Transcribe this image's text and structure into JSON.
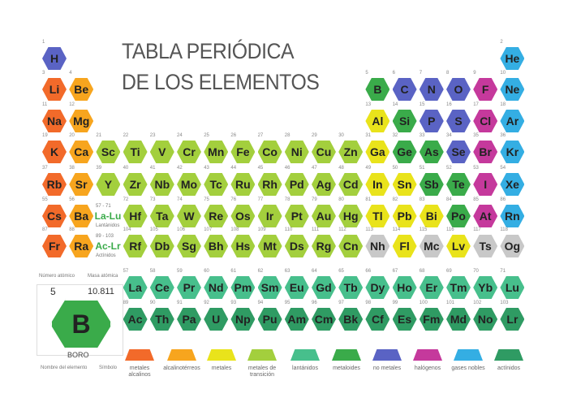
{
  "title": [
    "TABLA PERIÓDICA",
    "DE LOS ELEMENTOS"
  ],
  "legend": [
    {
      "label": "metales alcalinos",
      "color": "#f26a2a"
    },
    {
      "label": "alcalinotérreos",
      "color": "#f7a51e"
    },
    {
      "label": "metales",
      "color": "#e9e31b"
    },
    {
      "label": "metales de transición",
      "color": "#a3cf3d"
    },
    {
      "label": "lantánidos",
      "color": "#47bf8c"
    },
    {
      "label": "metaloides",
      "color": "#3aab4a"
    },
    {
      "label": "no metales",
      "color": "#5a63c4"
    },
    {
      "label": "halógenos",
      "color": "#c5399c"
    },
    {
      "label": "gases nobles",
      "color": "#34aee3"
    },
    {
      "label": "actínidos",
      "color": "#2f9b63"
    }
  ],
  "groups": {
    "lanthanides": {
      "symbol": "La-Lu",
      "range": "57 - 71",
      "name": "Lantánidos"
    },
    "actinides": {
      "symbol": "Ac-Lr",
      "range": "89 - 103",
      "name": "Actínidos"
    }
  },
  "key": {
    "number_label": "Número atómico",
    "mass_label": "Masa atómica",
    "number": 5,
    "mass": "10.811",
    "symbol": "B",
    "name": "BORO",
    "name_label": "Nombre del elemento",
    "symbol_label": "Símbolo",
    "category": 5
  },
  "unknown_color": "#c8c8c8",
  "elements": [
    {
      "n": 1,
      "s": "H",
      "c": 6
    },
    {
      "n": 2,
      "s": "He",
      "c": 8
    },
    {
      "n": 3,
      "s": "Li",
      "c": 0
    },
    {
      "n": 4,
      "s": "Be",
      "c": 1
    },
    {
      "n": 5,
      "s": "B",
      "c": 5
    },
    {
      "n": 6,
      "s": "C",
      "c": 6
    },
    {
      "n": 7,
      "s": "N",
      "c": 6
    },
    {
      "n": 8,
      "s": "O",
      "c": 6
    },
    {
      "n": 9,
      "s": "F",
      "c": 7
    },
    {
      "n": 10,
      "s": "Ne",
      "c": 8
    },
    {
      "n": 11,
      "s": "Na",
      "c": 0
    },
    {
      "n": 12,
      "s": "Mg",
      "c": 1
    },
    {
      "n": 13,
      "s": "Al",
      "c": 2
    },
    {
      "n": 14,
      "s": "Si",
      "c": 5
    },
    {
      "n": 15,
      "s": "P",
      "c": 6
    },
    {
      "n": 16,
      "s": "S",
      "c": 6
    },
    {
      "n": 17,
      "s": "Cl",
      "c": 7
    },
    {
      "n": 18,
      "s": "Ar",
      "c": 8
    },
    {
      "n": 19,
      "s": "K",
      "c": 0
    },
    {
      "n": 20,
      "s": "Ca",
      "c": 1
    },
    {
      "n": 21,
      "s": "Sc",
      "c": 3
    },
    {
      "n": 22,
      "s": "Ti",
      "c": 3
    },
    {
      "n": 23,
      "s": "V",
      "c": 3
    },
    {
      "n": 24,
      "s": "Cr",
      "c": 3
    },
    {
      "n": 25,
      "s": "Mn",
      "c": 3
    },
    {
      "n": 26,
      "s": "Fe",
      "c": 3
    },
    {
      "n": 27,
      "s": "Co",
      "c": 3
    },
    {
      "n": 28,
      "s": "Ni",
      "c": 3
    },
    {
      "n": 29,
      "s": "Cu",
      "c": 3
    },
    {
      "n": 30,
      "s": "Zn",
      "c": 3
    },
    {
      "n": 31,
      "s": "Ga",
      "c": 2
    },
    {
      "n": 32,
      "s": "Ge",
      "c": 5
    },
    {
      "n": 33,
      "s": "As",
      "c": 5
    },
    {
      "n": 34,
      "s": "Se",
      "c": 6
    },
    {
      "n": 35,
      "s": "Br",
      "c": 7
    },
    {
      "n": 36,
      "s": "Kr",
      "c": 8
    },
    {
      "n": 37,
      "s": "Rb",
      "c": 0
    },
    {
      "n": 38,
      "s": "Sr",
      "c": 1
    },
    {
      "n": 39,
      "s": "Y",
      "c": 3
    },
    {
      "n": 40,
      "s": "Zr",
      "c": 3
    },
    {
      "n": 41,
      "s": "Nb",
      "c": 3
    },
    {
      "n": 42,
      "s": "Mo",
      "c": 3
    },
    {
      "n": 43,
      "s": "Tc",
      "c": 3
    },
    {
      "n": 44,
      "s": "Ru",
      "c": 3
    },
    {
      "n": 45,
      "s": "Rh",
      "c": 3
    },
    {
      "n": 46,
      "s": "Pd",
      "c": 3
    },
    {
      "n": 47,
      "s": "Ag",
      "c": 3
    },
    {
      "n": 48,
      "s": "Cd",
      "c": 3
    },
    {
      "n": 49,
      "s": "In",
      "c": 2
    },
    {
      "n": 50,
      "s": "Sn",
      "c": 2
    },
    {
      "n": 51,
      "s": "Sb",
      "c": 5
    },
    {
      "n": 52,
      "s": "Te",
      "c": 5
    },
    {
      "n": 53,
      "s": "I",
      "c": 7
    },
    {
      "n": 54,
      "s": "Xe",
      "c": 8
    },
    {
      "n": 55,
      "s": "Cs",
      "c": 0
    },
    {
      "n": 56,
      "s": "Ba",
      "c": 1
    },
    {
      "n": 57,
      "s": "La",
      "c": 4
    },
    {
      "n": 58,
      "s": "Ce",
      "c": 4
    },
    {
      "n": 59,
      "s": "Pr",
      "c": 4
    },
    {
      "n": 60,
      "s": "Nd",
      "c": 4
    },
    {
      "n": 61,
      "s": "Pm",
      "c": 4
    },
    {
      "n": 62,
      "s": "Sm",
      "c": 4
    },
    {
      "n": 63,
      "s": "Eu",
      "c": 4
    },
    {
      "n": 64,
      "s": "Gd",
      "c": 4
    },
    {
      "n": 65,
      "s": "Tb",
      "c": 4
    },
    {
      "n": 66,
      "s": "Dy",
      "c": 4
    },
    {
      "n": 67,
      "s": "Ho",
      "c": 4
    },
    {
      "n": 68,
      "s": "Er",
      "c": 4
    },
    {
      "n": 69,
      "s": "Tm",
      "c": 4
    },
    {
      "n": 70,
      "s": "Yb",
      "c": 4
    },
    {
      "n": 71,
      "s": "Lu",
      "c": 4
    },
    {
      "n": 72,
      "s": "Hf",
      "c": 3
    },
    {
      "n": 73,
      "s": "Ta",
      "c": 3
    },
    {
      "n": 74,
      "s": "W",
      "c": 3
    },
    {
      "n": 75,
      "s": "Re",
      "c": 3
    },
    {
      "n": 76,
      "s": "Os",
      "c": 3
    },
    {
      "n": 77,
      "s": "Ir",
      "c": 3
    },
    {
      "n": 78,
      "s": "Pt",
      "c": 3
    },
    {
      "n": 79,
      "s": "Au",
      "c": 3
    },
    {
      "n": 80,
      "s": "Hg",
      "c": 3
    },
    {
      "n": 81,
      "s": "Tl",
      "c": 2
    },
    {
      "n": 82,
      "s": "Pb",
      "c": 2
    },
    {
      "n": 83,
      "s": "Bi",
      "c": 2
    },
    {
      "n": 84,
      "s": "Po",
      "c": 5
    },
    {
      "n": 85,
      "s": "At",
      "c": 7
    },
    {
      "n": 86,
      "s": "Rn",
      "c": 8
    },
    {
      "n": 87,
      "s": "Fr",
      "c": 0
    },
    {
      "n": 88,
      "s": "Ra",
      "c": 1
    },
    {
      "n": 89,
      "s": "Ac",
      "c": 9
    },
    {
      "n": 90,
      "s": "Th",
      "c": 9
    },
    {
      "n": 91,
      "s": "Pa",
      "c": 9
    },
    {
      "n": 92,
      "s": "U",
      "c": 9
    },
    {
      "n": 93,
      "s": "Np",
      "c": 9
    },
    {
      "n": 94,
      "s": "Pu",
      "c": 9
    },
    {
      "n": 95,
      "s": "Am",
      "c": 9
    },
    {
      "n": 96,
      "s": "Cm",
      "c": 9
    },
    {
      "n": 97,
      "s": "Bk",
      "c": 9
    },
    {
      "n": 98,
      "s": "Cf",
      "c": 9
    },
    {
      "n": 99,
      "s": "Es",
      "c": 9
    },
    {
      "n": 100,
      "s": "Fm",
      "c": 9
    },
    {
      "n": 101,
      "s": "Md",
      "c": 9
    },
    {
      "n": 102,
      "s": "No",
      "c": 9
    },
    {
      "n": 103,
      "s": "Lr",
      "c": 9
    },
    {
      "n": 104,
      "s": "Rf",
      "c": 3
    },
    {
      "n": 105,
      "s": "Db",
      "c": 3
    },
    {
      "n": 106,
      "s": "Sg",
      "c": 3
    },
    {
      "n": 107,
      "s": "Bh",
      "c": 3
    },
    {
      "n": 108,
      "s": "Hs",
      "c": 3
    },
    {
      "n": 109,
      "s": "Mt",
      "c": 3
    },
    {
      "n": 110,
      "s": "Ds",
      "c": 3
    },
    {
      "n": 111,
      "s": "Rg",
      "c": 3
    },
    {
      "n": 112,
      "s": "Cn",
      "c": 3
    },
    {
      "n": 113,
      "s": "Nh",
      "c": null
    },
    {
      "n": 114,
      "s": "Fl",
      "c": 2
    },
    {
      "n": 115,
      "s": "Mc",
      "c": null
    },
    {
      "n": 116,
      "s": "Lv",
      "c": 2
    },
    {
      "n": 117,
      "s": "Ts",
      "c": null
    },
    {
      "n": 118,
      "s": "Og",
      "c": null
    }
  ]
}
